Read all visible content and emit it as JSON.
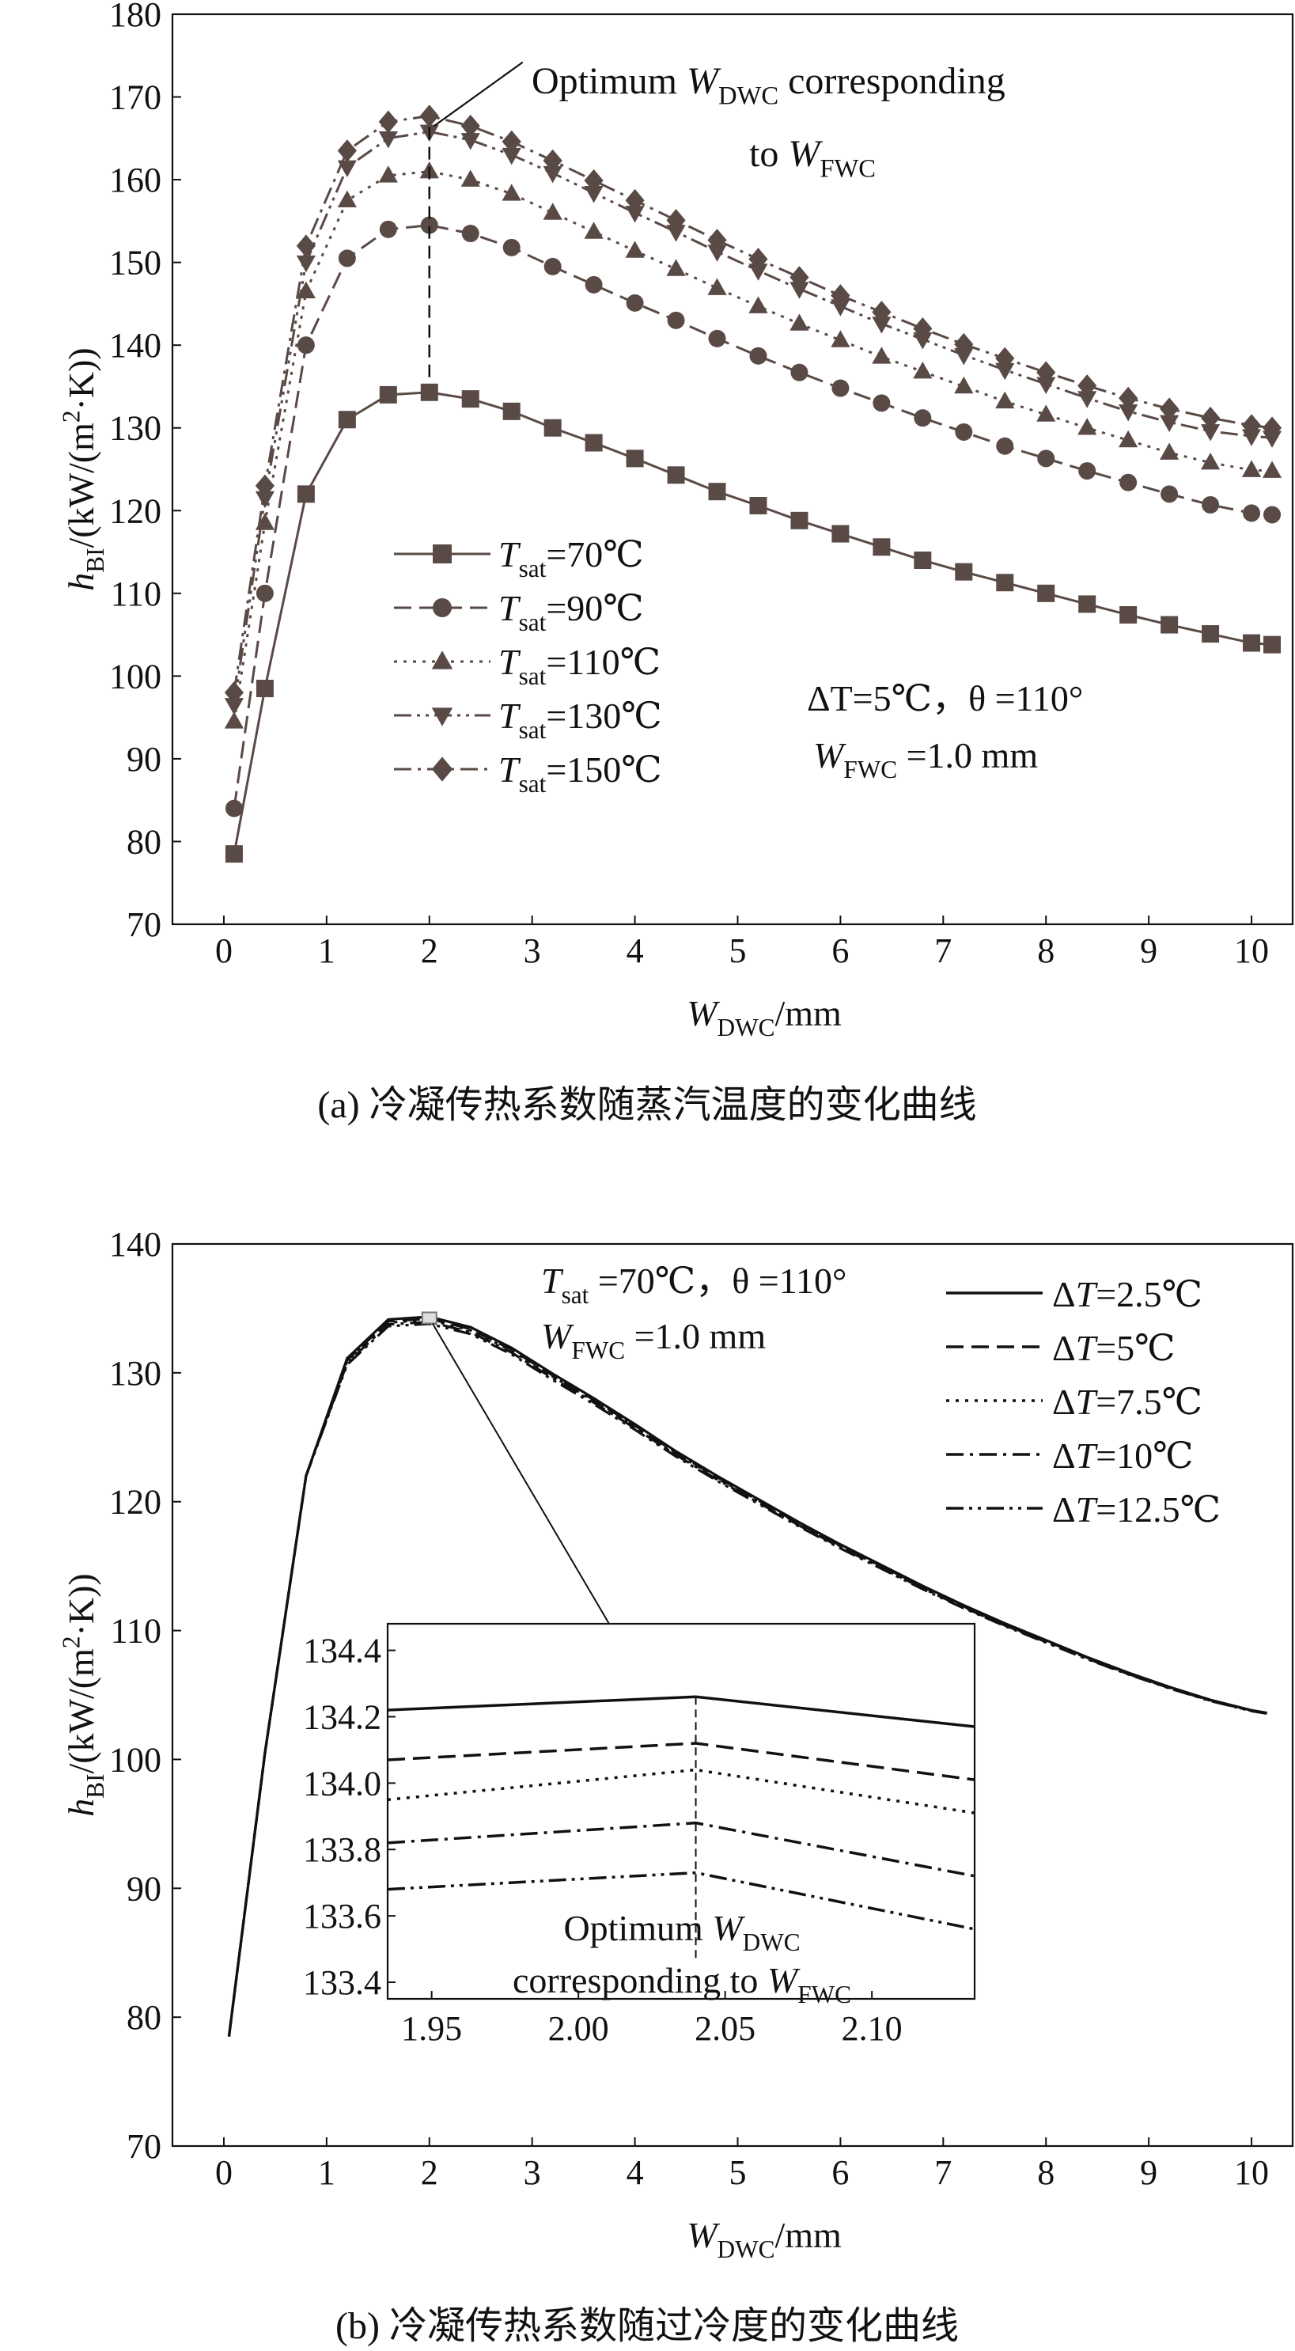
{
  "chart_data": [
    {
      "id": "a",
      "type": "line",
      "caption": "(a) 冷凝传热系数随蒸汽温度的变化曲线",
      "ylabel": "h_BI/(kW/(m²·K))",
      "ylabel_parts": {
        "main": "h",
        "sub": "BI",
        "unit1": "/(kW/(m",
        "sup": "2",
        "unit2": "·K))"
      },
      "xlabel_parts": {
        "main": "W",
        "sub": "DWC",
        "unit": "/mm"
      },
      "xlim": [
        -0.5,
        10.4
      ],
      "ylim": [
        70,
        180
      ],
      "xticks": [
        0,
        1,
        2,
        3,
        4,
        5,
        6,
        7,
        8,
        9,
        10
      ],
      "yticks": [
        70,
        80,
        90,
        100,
        110,
        120,
        130,
        140,
        150,
        160,
        170,
        180
      ],
      "legend_prefix": "T",
      "legend_sub": "sat",
      "condition_text": {
        "line1": "ΔT=5℃，θ =110°",
        "line2_main": "W",
        "line2_sub": "FWC",
        "line2_rest": " =1.0 mm"
      },
      "annotation": {
        "line1_pre": "Optimum ",
        "line1_main": "W",
        "line1_sub": "DWC",
        "line1_post": " corresponding",
        "line2_pre": "to ",
        "line2_main": "W",
        "line2_sub": "FWC",
        "x": 2.0
      },
      "x": [
        0.1,
        0.4,
        0.8,
        1.2,
        1.6,
        2.0,
        2.4,
        2.8,
        3.2,
        3.6,
        4.0,
        4.4,
        4.8,
        5.2,
        5.6,
        6.0,
        6.4,
        6.8,
        7.2,
        7.6,
        8.0,
        8.4,
        8.8,
        9.2,
        9.6,
        10.0,
        10.2
      ],
      "series": [
        {
          "name": "=70℃",
          "marker": "square",
          "dash": "solid",
          "values": [
            78.5,
            98.5,
            122,
            131,
            134,
            134.3,
            133.5,
            132,
            130,
            128.2,
            126.3,
            124.3,
            122.3,
            120.6,
            118.8,
            117.2,
            115.6,
            114,
            112.6,
            111.3,
            110,
            108.7,
            107.4,
            106.2,
            105.1,
            104,
            103.8
          ]
        },
        {
          "name": "=90℃",
          "marker": "circle",
          "dash": "dashed",
          "values": [
            84,
            110,
            140,
            150.5,
            154,
            154.5,
            153.5,
            151.8,
            149.5,
            147.3,
            145.1,
            143,
            140.8,
            138.7,
            136.7,
            134.8,
            133,
            131.2,
            129.5,
            127.8,
            126.3,
            124.8,
            123.4,
            122,
            120.7,
            119.7,
            119.5
          ]
        },
        {
          "name": "=110℃",
          "marker": "triangle-up",
          "dash": "dotted",
          "values": [
            94.5,
            118.5,
            146.5,
            157.5,
            160.5,
            161,
            160,
            158.3,
            156,
            153.7,
            151.4,
            149.2,
            146.9,
            144.7,
            142.6,
            140.6,
            138.6,
            136.8,
            135,
            133.2,
            131.6,
            130,
            128.5,
            127,
            125.8,
            124.9,
            124.8
          ]
        },
        {
          "name": "=130℃",
          "marker": "triangle-down",
          "dash": "dashdotdot",
          "values": [
            96.5,
            121.5,
            150,
            161.5,
            165,
            165.8,
            164.8,
            163,
            160.8,
            158.4,
            156,
            153.7,
            151.3,
            149,
            146.8,
            144.7,
            142.6,
            140.7,
            138.8,
            137,
            135.3,
            133.6,
            132,
            130.7,
            129.6,
            129,
            128.8
          ]
        },
        {
          "name": "=150℃",
          "marker": "diamond",
          "dash": "dashdot",
          "values": [
            98,
            123,
            152,
            163.5,
            167,
            167.7,
            166.5,
            164.6,
            162.3,
            159.9,
            157.5,
            155.1,
            152.7,
            150.4,
            148.2,
            146,
            144,
            142,
            140.1,
            138.4,
            136.7,
            135.1,
            133.6,
            132.3,
            131.2,
            130.3,
            130
          ]
        }
      ]
    },
    {
      "id": "b",
      "type": "line",
      "caption": "(b) 冷凝传热系数随过冷度的变化曲线",
      "ylabel": "h_BI/(kW/(m²·K))",
      "ylabel_parts": {
        "main": "h",
        "sub": "BI",
        "unit1": "/(kW/(m",
        "sup": "2",
        "unit2": "·K))"
      },
      "xlabel_parts": {
        "main": "W",
        "sub": "DWC",
        "unit": "/mm"
      },
      "xlim": [
        -0.5,
        10.4
      ],
      "ylim": [
        70,
        140
      ],
      "xticks": [
        0,
        1,
        2,
        3,
        4,
        5,
        6,
        7,
        8,
        9,
        10
      ],
      "yticks": [
        70,
        80,
        90,
        100,
        110,
        120,
        130,
        140
      ],
      "legend_prefix": "ΔT",
      "condition_text": {
        "line1_main": "T",
        "line1_sub": "sat",
        "line1_rest": " =70℃，θ =110°",
        "line2_main": "W",
        "line2_sub": "FWC",
        "line2_rest": " =1.0 mm"
      },
      "x": [
        0.05,
        0.4,
        0.8,
        1.2,
        1.6,
        2.0,
        2.4,
        2.8,
        3.2,
        3.6,
        4.0,
        4.4,
        4.8,
        5.2,
        5.6,
        6.0,
        6.4,
        6.8,
        7.2,
        7.6,
        8.0,
        8.4,
        8.8,
        9.2,
        9.6,
        10.0,
        10.15
      ],
      "base_values": [
        78.5,
        100.5,
        122,
        131,
        134,
        134.2,
        133.4,
        131.8,
        129.8,
        127.9,
        125.9,
        123.8,
        121.9,
        120.1,
        118.3,
        116.6,
        115,
        113.4,
        111.9,
        110.5,
        109.2,
        107.9,
        106.7,
        105.6,
        104.6,
        103.8,
        103.6
      ],
      "series": [
        {
          "name": "=2.5℃",
          "dash": "solid"
        },
        {
          "name": "=5℃",
          "dash": "dashed"
        },
        {
          "name": "=7.5℃",
          "dash": "dotted"
        },
        {
          "name": "=10℃",
          "dash": "dashdot"
        },
        {
          "name": "=12.5℃",
          "dash": "dashdotdot"
        }
      ],
      "inset": {
        "xlim": [
          1.935,
          2.135
        ],
        "ylim": [
          133.35,
          134.48
        ],
        "xticks": [
          1.95,
          2.0,
          2.05,
          2.1
        ],
        "xtick_labels": [
          "1.95",
          "2.00",
          "2.05",
          "2.10"
        ],
        "yticks": [
          133.4,
          133.6,
          133.8,
          134.0,
          134.2,
          134.4
        ],
        "ytick_labels": [
          "133.4",
          "133.6",
          "133.8",
          "134.0",
          "134.2",
          "134.4"
        ],
        "peak_x": 2.04,
        "series": [
          {
            "name": "ΔT=2.5℃",
            "dash": "solid",
            "x": [
              1.935,
              2.04,
              2.135
            ],
            "values": [
              134.22,
              134.26,
              134.17
            ]
          },
          {
            "name": "ΔT=5℃",
            "dash": "dashed",
            "x": [
              1.935,
              2.04,
              2.135
            ],
            "values": [
              134.07,
              134.12,
              134.01
            ]
          },
          {
            "name": "ΔT=7.5℃",
            "dash": "dotted",
            "x": [
              1.935,
              2.04,
              2.135
            ],
            "values": [
              133.95,
              134.04,
              133.91
            ]
          },
          {
            "name": "ΔT=10℃",
            "dash": "dashdot",
            "x": [
              1.935,
              2.04,
              2.135
            ],
            "values": [
              133.82,
              133.88,
              133.72
            ]
          },
          {
            "name": "ΔT=12.5℃",
            "dash": "dashdotdot",
            "x": [
              1.935,
              2.04,
              2.135
            ],
            "values": [
              133.68,
              133.73,
              133.56
            ]
          }
        ],
        "annotation": {
          "line1_pre": "Optimum ",
          "line1_main": "W",
          "line1_sub": "DWC",
          "line2_pre": "corresponding to ",
          "line2_main": "W",
          "line2_sub": "FWC"
        }
      }
    }
  ]
}
